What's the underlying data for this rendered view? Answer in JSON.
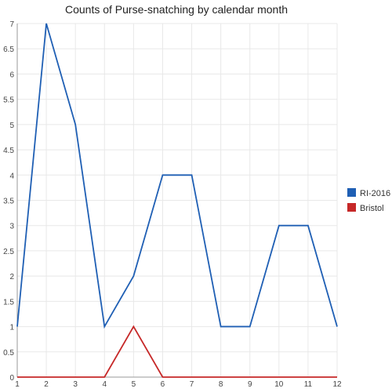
{
  "chart_data": {
    "type": "line",
    "title": "Counts of Purse-snatching by calendar month",
    "xlabel": "",
    "ylabel": "",
    "x": [
      1,
      2,
      3,
      4,
      5,
      6,
      7,
      8,
      9,
      10,
      11,
      12
    ],
    "xlim": [
      1,
      12
    ],
    "ylim": [
      0,
      7
    ],
    "yticks": [
      0,
      0.5,
      1,
      1.5,
      2,
      2.5,
      3,
      3.5,
      4,
      4.5,
      5,
      5.5,
      6,
      6.5,
      7
    ],
    "grid": true,
    "legend_position": "right",
    "series": [
      {
        "name": "RI-2016",
        "color": "#1f5fb4",
        "values": [
          1,
          7,
          5,
          1,
          2,
          4,
          4,
          1,
          1,
          3,
          3,
          1
        ]
      },
      {
        "name": "Bristol",
        "color": "#c62828",
        "values": [
          0,
          0,
          0,
          0,
          1,
          0,
          0,
          0,
          0,
          0,
          0,
          0
        ]
      }
    ]
  }
}
